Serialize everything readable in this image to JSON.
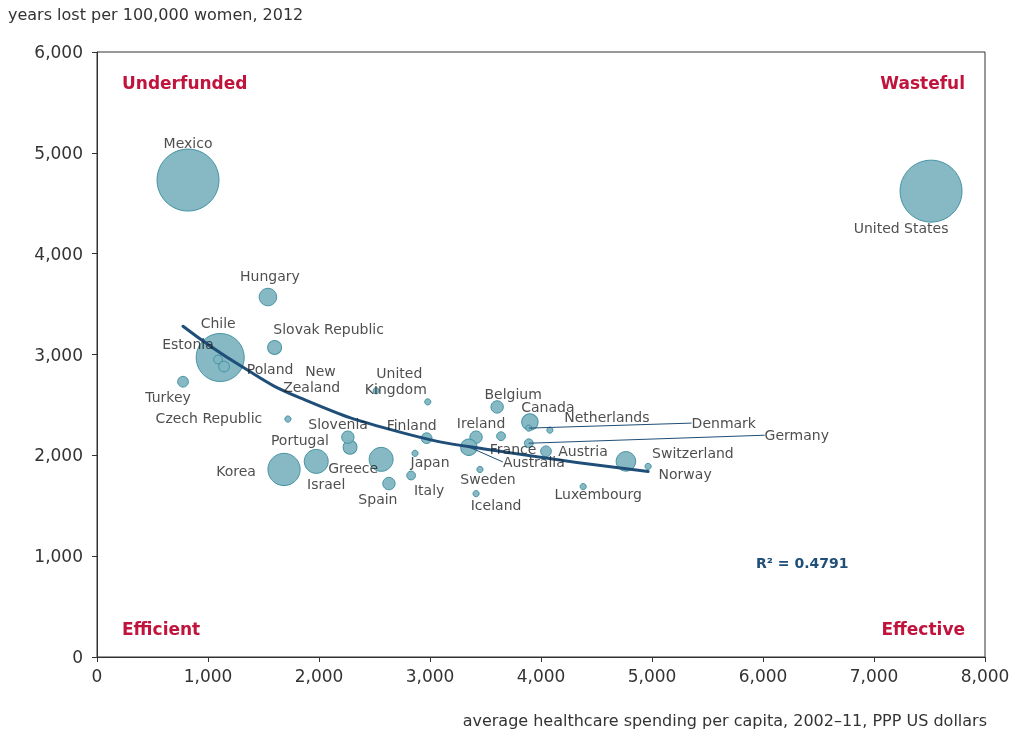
{
  "chart_data": {
    "type": "bubble",
    "xlabel": "average healthcare spending per capita, 2002–11, PPP US dollars",
    "ylabel": "years lost per 100,000 women, 2012",
    "xlim": [
      0,
      8000
    ],
    "ylim": [
      0,
      6000
    ],
    "xticks": [
      0,
      {
        "value": 1000,
        "label": "1,000"
      },
      {
        "value": 2000,
        "label": "2,000"
      },
      {
        "value": 3000,
        "label": "3,000"
      },
      {
        "value": 4000,
        "label": "4,000"
      },
      {
        "value": 5000,
        "label": "5,000"
      },
      {
        "value": 6000,
        "label": "6,000"
      },
      {
        "value": 7000,
        "label": "7,000"
      },
      {
        "value": 8000,
        "label": "8,000"
      }
    ],
    "yticks": [
      0,
      {
        "value": 1000,
        "label": "1,000"
      },
      {
        "value": 2000,
        "label": "2,000"
      },
      {
        "value": 3000,
        "label": "3,000"
      },
      {
        "value": 4000,
        "label": "4,000"
      },
      {
        "value": 5000,
        "label": "5,000"
      },
      {
        "value": 6000,
        "label": "6,000"
      }
    ],
    "grid": false,
    "marker": "circle",
    "series": [
      {
        "color": "#7fb5c1",
        "x": [
          820,
          7514,
          1540,
          1600,
          1110,
          1090,
          1145,
          775,
          1720,
          2515,
          2980,
          2280,
          2260,
          2970,
          1685,
          1975,
          2560,
          2865,
          2830,
          2630,
          3605,
          3900,
          4080,
          3890,
          3890,
          3415,
          3640,
          3350,
          4045,
          4765,
          4965,
          3450,
          3415,
          4380
        ],
        "values": [
          4730,
          4620,
          3570,
          3070,
          2970,
          2950,
          2880,
          2730,
          2360,
          2640,
          2530,
          2080,
          2180,
          2170,
          1860,
          1940,
          1960,
          2020,
          1800,
          1720,
          2480,
          2330,
          2250,
          2270,
          2120,
          2180,
          2190,
          2080,
          2040,
          1940,
          1890,
          1860,
          1620,
          1690
        ],
        "sizes": [
          1,
          1,
          0.08,
          0.05,
          0.6,
          0.02,
          0.03,
          0.03,
          0.01,
          0.01,
          0.01,
          0.05,
          0.04,
          0.03,
          0.27,
          0.15,
          0.15,
          0.01,
          0.02,
          0.04,
          0.04,
          0.07,
          0.01,
          0.01,
          0.02,
          0.04,
          0.02,
          0.07,
          0.03,
          0.1,
          0.01,
          0.01,
          0.01,
          0.01
        ]
      },
      {
        "type": "line",
        "color": "#1f4e79",
        "marker": "none",
        "x": [
          775,
          1290,
          1830,
          2730,
          3630,
          4965
        ],
        "values": [
          3280,
          2890,
          2570,
          2230,
          2040,
          1840
        ]
      }
    ],
    "annotations": [
      {
        "text": "Mexico",
        "x": 820,
        "y": 4730
      },
      {
        "text": "United States",
        "x": 7514,
        "y": 4620
      },
      {
        "text": "Hungary",
        "x": 1540,
        "y": 3570
      },
      {
        "text": "Slovak Republic",
        "x": 1600,
        "y": 3065
      },
      {
        "text": "Chile",
        "x": 1110,
        "y": 2965
      },
      {
        "text": "Estonia",
        "x": 1090,
        "y": 2955
      },
      {
        "text": "Poland",
        "x": 1145,
        "y": 2875
      },
      {
        "text": "Turkey",
        "x": 775,
        "y": 2727
      },
      {
        "text": "Czech Republic",
        "x": 1720,
        "y": 2360
      },
      {
        "text": "New Zealand",
        "x": 2515,
        "y": 2638
      },
      {
        "text": "United Kingdom",
        "x": 2980,
        "y": 2530
      },
      {
        "text": "Slovenia",
        "x": 2280,
        "y": 2083
      },
      {
        "text": "Portugal",
        "x": 2260,
        "y": 2180
      },
      {
        "text": "Finland",
        "x": 2970,
        "y": 2170
      },
      {
        "text": "Korea",
        "x": 1685,
        "y": 1855
      },
      {
        "text": "Israel",
        "x": 1975,
        "y": 1935
      },
      {
        "text": "Greece",
        "x": 2560,
        "y": 1955
      },
      {
        "text": "Japan",
        "x": 2865,
        "y": 2023
      },
      {
        "text": "Italy",
        "x": 2830,
        "y": 1795
      },
      {
        "text": "Spain",
        "x": 2630,
        "y": 1715
      },
      {
        "text": "Belgium",
        "x": 3605,
        "y": 2480
      },
      {
        "text": "Canada",
        "x": 3900,
        "y": 2330
      },
      {
        "text": "Netherlands",
        "x": 4080,
        "y": 2250
      },
      {
        "text": "Denmark",
        "x": 3890,
        "y": 2270
      },
      {
        "text": "Germany",
        "x": 3890,
        "y": 2120
      },
      {
        "text": "Ireland",
        "x": 3415,
        "y": 2180
      },
      {
        "text": "France",
        "x": 3640,
        "y": 2190
      },
      {
        "text": "Australia",
        "x": 3350,
        "y": 2083
      },
      {
        "text": "Austria",
        "x": 4045,
        "y": 2043
      },
      {
        "text": "Switzerland",
        "x": 4765,
        "y": 1935
      },
      {
        "text": "Norway",
        "x": 4965,
        "y": 1885
      },
      {
        "text": "Sweden",
        "x": 3450,
        "y": 1855
      },
      {
        "text": "Iceland",
        "x": 3415,
        "y": 1615
      },
      {
        "text": "Luxembourg",
        "x": 4380,
        "y": 1686
      },
      "Underfunded",
      "Wasteful",
      "Efficient",
      "Effective",
      "R² = 0.4791"
    ]
  }
}
